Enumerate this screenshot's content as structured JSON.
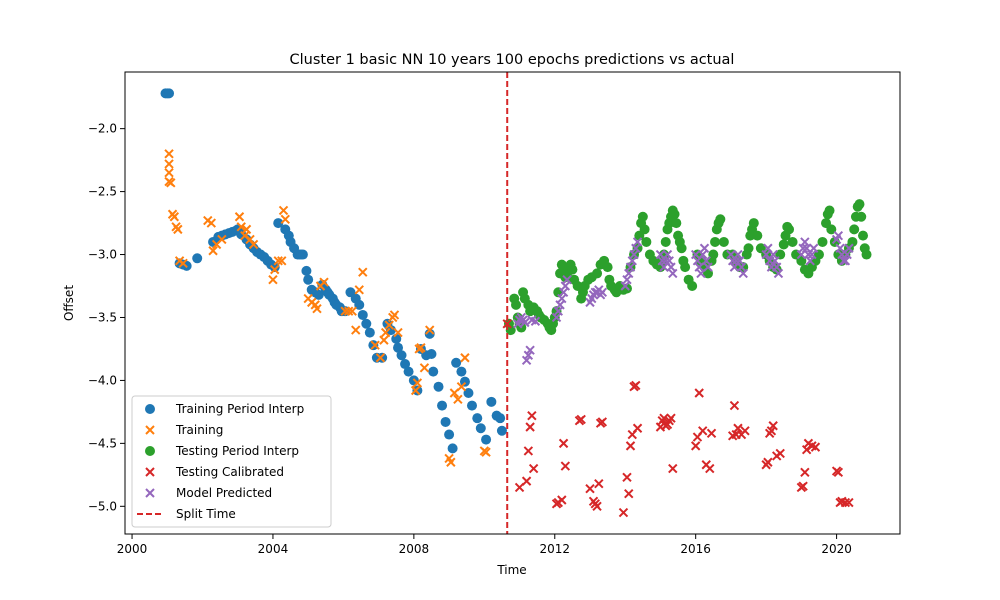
{
  "chart_data": {
    "type": "scatter",
    "title": "Cluster 1 basic NN 10 years 100 epochs predictions vs actual",
    "xlabel": "Time",
    "ylabel": "Offset",
    "xlim": [
      1999.8,
      2021.8
    ],
    "ylim": [
      -5.22,
      -1.55
    ],
    "xticks": [
      2000,
      2004,
      2008,
      2012,
      2016,
      2020
    ],
    "yticks": [
      -5.0,
      -4.5,
      -4.0,
      -3.5,
      -3.0,
      -2.5,
      -2.0
    ],
    "grid": false,
    "legend_position": "lower-left",
    "split_time": 2010.65,
    "series": [
      {
        "name": "Training Period Interp",
        "marker": "circle",
        "color": "#1f77b4",
        "x": [
          2000.95,
          2001.0,
          2001.05,
          2001.35,
          2001.45,
          2001.55,
          2001.85,
          2002.3,
          2002.45,
          2002.55,
          2002.65,
          2002.75,
          2002.85,
          2002.95,
          2003.0,
          2003.1,
          2003.25,
          2003.35,
          2003.45,
          2003.55,
          2003.65,
          2003.75,
          2003.85,
          2003.95,
          2004.05,
          2004.15,
          2004.35,
          2004.45,
          2004.5,
          2004.6,
          2004.7,
          2004.75,
          2004.8,
          2004.85,
          2004.95,
          2005.0,
          2005.1,
          2005.2,
          2005.3,
          2005.4,
          2005.5,
          2005.55,
          2005.6,
          2005.7,
          2005.75,
          2005.8,
          2005.9,
          2005.95,
          2006.05,
          2006.2,
          2006.35,
          2006.45,
          2006.55,
          2006.65,
          2006.75,
          2006.85,
          2006.95,
          2007.1,
          2007.25,
          2007.35,
          2007.5,
          2007.55,
          2007.65,
          2007.75,
          2007.85,
          2008.0,
          2008.1,
          2008.2,
          2008.35,
          2008.45,
          2008.5,
          2008.55,
          2008.7,
          2008.8,
          2008.9,
          2009.0,
          2009.1,
          2009.2,
          2009.35,
          2009.45,
          2009.55,
          2009.65,
          2009.8,
          2009.9,
          2010.05,
          2010.2,
          2010.35,
          2010.45,
          2010.5
        ],
        "y": [
          -1.72,
          -1.72,
          -1.72,
          -3.07,
          -3.08,
          -3.09,
          -3.03,
          -2.9,
          -2.86,
          -2.85,
          -2.84,
          -2.83,
          -2.82,
          -2.81,
          -2.8,
          -2.84,
          -2.88,
          -2.92,
          -2.95,
          -2.98,
          -3.0,
          -3.02,
          -3.05,
          -3.08,
          -3.1,
          -2.75,
          -2.8,
          -2.85,
          -2.9,
          -2.95,
          -3.0,
          -3.0,
          -3.0,
          -3.0,
          -3.13,
          -3.2,
          -3.28,
          -3.3,
          -3.32,
          -3.24,
          -3.28,
          -3.3,
          -3.32,
          -3.35,
          -3.38,
          -3.4,
          -3.42,
          -3.45,
          -3.45,
          -3.3,
          -3.35,
          -3.4,
          -3.48,
          -3.55,
          -3.62,
          -3.72,
          -3.82,
          -3.82,
          -3.55,
          -3.6,
          -3.67,
          -3.74,
          -3.8,
          -3.87,
          -3.93,
          -4.0,
          -4.08,
          -3.75,
          -3.8,
          -3.63,
          -3.79,
          -3.93,
          -4.05,
          -4.2,
          -4.33,
          -4.43,
          -4.54,
          -3.86,
          -3.93,
          -4.01,
          -4.1,
          -4.2,
          -4.3,
          -4.38,
          -4.47,
          -4.17,
          -4.28,
          -4.3,
          -4.4
        ]
      },
      {
        "name": "Training",
        "marker": "x",
        "color": "#ff7f0e",
        "x": [
          2001.05,
          2001.05,
          2001.05,
          2001.05,
          2001.1,
          2001.15,
          2001.2,
          2001.25,
          2001.3,
          2001.35,
          2001.45,
          2002.15,
          2002.25,
          2002.3,
          2002.4,
          2002.55,
          2003.05,
          2003.1,
          2003.2,
          2003.25,
          2003.35,
          2003.45,
          2004.0,
          2004.05,
          2004.15,
          2004.25,
          2004.3,
          2004.35,
          2005.0,
          2005.1,
          2005.2,
          2005.25,
          2005.35,
          2005.45,
          2006.05,
          2006.15,
          2006.25,
          2006.35,
          2006.45,
          2006.55,
          2006.9,
          2007.05,
          2007.15,
          2007.2,
          2007.3,
          2007.4,
          2007.45,
          2007.55,
          2008.05,
          2008.1,
          2008.15,
          2008.2,
          2008.3,
          2008.45,
          2009.0,
          2009.05,
          2009.15,
          2009.25,
          2009.35,
          2009.45,
          2010.0,
          2010.05
        ],
        "y": [
          -2.2,
          -2.28,
          -2.35,
          -2.42,
          -2.43,
          -2.68,
          -2.7,
          -2.78,
          -2.8,
          -3.05,
          -3.07,
          -2.73,
          -2.75,
          -2.97,
          -2.92,
          -2.88,
          -2.7,
          -2.78,
          -2.85,
          -2.8,
          -2.88,
          -2.92,
          -3.2,
          -3.12,
          -3.05,
          -3.05,
          -2.65,
          -2.72,
          -3.35,
          -3.38,
          -3.4,
          -3.43,
          -3.25,
          -3.22,
          -3.45,
          -3.45,
          -3.45,
          -3.6,
          -3.28,
          -3.14,
          -3.72,
          -3.82,
          -3.68,
          -3.62,
          -3.56,
          -3.5,
          -3.48,
          -3.62,
          -4.08,
          -4.02,
          -3.75,
          -3.74,
          -3.9,
          -3.6,
          -4.62,
          -4.65,
          -4.1,
          -4.15,
          -4.05,
          -3.82,
          -4.56,
          -4.57
        ]
      },
      {
        "name": "Testing Period Interp",
        "marker": "circle",
        "color": "#2ca02c",
        "x": [
          2010.7,
          2010.75,
          2010.85,
          2010.9,
          2010.95,
          2011.0,
          2011.05,
          2011.1,
          2011.15,
          2011.25,
          2011.3,
          2011.4,
          2011.5,
          2011.55,
          2011.6,
          2011.7,
          2011.8,
          2011.85,
          2011.9,
          2011.95,
          2012.0,
          2012.05,
          2012.1,
          2012.15,
          2012.2,
          2012.25,
          2012.3,
          2012.35,
          2012.4,
          2012.45,
          2012.5,
          2012.55,
          2012.65,
          2012.75,
          2012.8,
          2012.85,
          2012.95,
          2013.05,
          2013.2,
          2013.3,
          2013.4,
          2013.5,
          2013.55,
          2013.6,
          2013.7,
          2013.75,
          2013.85,
          2013.95,
          2014.05,
          2014.15,
          2014.25,
          2014.35,
          2014.4,
          2014.45,
          2014.5,
          2014.55,
          2014.6,
          2014.7,
          2014.8,
          2014.9,
          2015.0,
          2015.05,
          2015.1,
          2015.15,
          2015.2,
          2015.25,
          2015.3,
          2015.35,
          2015.4,
          2015.45,
          2015.5,
          2015.55,
          2015.6,
          2015.65,
          2015.7,
          2015.8,
          2015.9,
          2016.05,
          2016.15,
          2016.25,
          2016.35,
          2016.45,
          2016.5,
          2016.55,
          2016.6,
          2016.65,
          2016.7,
          2016.8,
          2016.9,
          2017.05,
          2017.15,
          2017.25,
          2017.35,
          2017.45,
          2017.5,
          2017.55,
          2017.6,
          2017.65,
          2017.75,
          2017.85,
          2018.0,
          2018.1,
          2018.2,
          2018.3,
          2018.4,
          2018.5,
          2018.55,
          2018.6,
          2018.65,
          2018.75,
          2018.85,
          2019.0,
          2019.1,
          2019.2,
          2019.3,
          2019.4,
          2019.5,
          2019.6,
          2019.7,
          2019.75,
          2019.8,
          2019.85,
          2019.95,
          2020.05,
          2020.15,
          2020.25,
          2020.35,
          2020.45,
          2020.5,
          2020.55,
          2020.6,
          2020.65,
          2020.7,
          2020.75,
          2020.8,
          2020.85
        ],
        "y": [
          -3.55,
          -3.6,
          -3.35,
          -3.4,
          -3.5,
          -3.55,
          -3.58,
          -3.3,
          -3.35,
          -3.4,
          -3.45,
          -3.42,
          -3.45,
          -3.48,
          -3.5,
          -3.52,
          -3.55,
          -3.58,
          -3.6,
          -3.55,
          -3.5,
          -3.45,
          -3.3,
          -3.15,
          -3.08,
          -3.12,
          -3.18,
          -3.15,
          -3.12,
          -3.08,
          -3.12,
          -3.2,
          -3.25,
          -3.35,
          -3.3,
          -3.25,
          -3.2,
          -3.18,
          -3.15,
          -3.08,
          -3.05,
          -3.1,
          -3.2,
          -3.25,
          -3.28,
          -3.3,
          -3.25,
          -3.28,
          -3.27,
          -3.1,
          -3.0,
          -2.95,
          -2.85,
          -2.75,
          -2.7,
          -2.8,
          -2.9,
          -3.0,
          -3.05,
          -3.08,
          -3.1,
          -3.05,
          -3.0,
          -2.9,
          -2.8,
          -2.75,
          -2.7,
          -2.65,
          -2.68,
          -2.75,
          -2.85,
          -2.9,
          -2.95,
          -3.05,
          -3.1,
          -3.2,
          -3.25,
          -3.0,
          -3.05,
          -3.1,
          -3.15,
          -3.05,
          -3.0,
          -2.9,
          -2.8,
          -2.75,
          -2.72,
          -2.9,
          -3.0,
          -3.0,
          -3.05,
          -3.1,
          -3.1,
          -3.0,
          -2.95,
          -2.85,
          -2.8,
          -2.75,
          -2.85,
          -2.95,
          -3.0,
          -3.05,
          -3.1,
          -3.12,
          -3.0,
          -2.92,
          -2.85,
          -2.78,
          -2.8,
          -2.9,
          -3.0,
          -3.05,
          -3.12,
          -3.15,
          -3.1,
          -3.05,
          -3.0,
          -2.9,
          -2.75,
          -2.68,
          -2.65,
          -2.8,
          -2.9,
          -3.0,
          -3.05,
          -3.0,
          -2.95,
          -2.9,
          -2.8,
          -2.7,
          -2.62,
          -2.6,
          -2.7,
          -2.85,
          -2.95,
          -3.0
        ]
      },
      {
        "name": "Testing Calibrated",
        "marker": "x",
        "color": "#d62728",
        "x": [
          2010.65,
          2011.0,
          2011.2,
          2011.25,
          2011.3,
          2011.35,
          2011.4,
          2012.05,
          2012.1,
          2012.2,
          2012.25,
          2012.3,
          2012.7,
          2012.75,
          2013.0,
          2013.1,
          2013.15,
          2013.2,
          2013.25,
          2013.3,
          2013.35,
          2013.95,
          2014.05,
          2014.1,
          2014.15,
          2014.2,
          2014.25,
          2014.3,
          2014.35,
          2015.0,
          2015.05,
          2015.1,
          2015.15,
          2015.2,
          2015.25,
          2015.3,
          2015.35,
          2016.0,
          2016.05,
          2016.1,
          2016.2,
          2016.3,
          2016.4,
          2016.45,
          2017.05,
          2017.1,
          2017.15,
          2017.2,
          2017.3,
          2017.4,
          2018.0,
          2018.05,
          2018.1,
          2018.15,
          2018.2,
          2018.3,
          2018.4,
          2019.0,
          2019.05,
          2019.1,
          2019.15,
          2019.2,
          2019.3,
          2019.4,
          2020.0,
          2020.05,
          2020.1,
          2020.15,
          2020.25,
          2020.35
        ],
        "y": [
          -3.55,
          -4.85,
          -4.8,
          -4.56,
          -4.37,
          -4.28,
          -4.7,
          -4.98,
          -4.97,
          -4.95,
          -4.5,
          -4.68,
          -4.32,
          -4.31,
          -4.86,
          -4.96,
          -4.98,
          -5.0,
          -4.82,
          -4.34,
          -4.33,
          -5.05,
          -4.77,
          -4.9,
          -4.52,
          -4.43,
          -4.05,
          -4.04,
          -4.38,
          -4.37,
          -4.32,
          -4.3,
          -4.36,
          -4.35,
          -4.32,
          -4.3,
          -4.7,
          -4.52,
          -4.45,
          -4.1,
          -4.4,
          -4.67,
          -4.7,
          -4.42,
          -4.44,
          -4.2,
          -4.43,
          -4.38,
          -4.43,
          -4.4,
          -4.67,
          -4.65,
          -4.42,
          -4.4,
          -4.36,
          -4.6,
          -4.58,
          -4.85,
          -4.84,
          -4.73,
          -4.55,
          -4.5,
          -4.52,
          -4.53,
          -4.72,
          -4.73,
          -4.97,
          -4.96,
          -4.97,
          -4.97
        ]
      },
      {
        "name": "Model Predicted",
        "marker": "x",
        "color": "#9467bd",
        "x": [
          2010.95,
          2011.0,
          2011.05,
          2011.1,
          2011.15,
          2011.2,
          2011.25,
          2011.3,
          2011.35,
          2011.45,
          2012.05,
          2012.1,
          2012.15,
          2012.2,
          2012.25,
          2012.3,
          2012.35,
          2013.0,
          2013.05,
          2013.1,
          2013.15,
          2013.2,
          2013.25,
          2013.3,
          2013.35,
          2014.0,
          2014.05,
          2014.1,
          2014.15,
          2014.2,
          2014.25,
          2014.3,
          2014.35,
          2015.0,
          2015.05,
          2015.1,
          2015.15,
          2015.2,
          2015.25,
          2015.3,
          2015.35,
          2016.0,
          2016.05,
          2016.1,
          2016.15,
          2016.2,
          2016.25,
          2016.3,
          2016.35,
          2017.0,
          2017.05,
          2017.1,
          2017.15,
          2017.2,
          2017.25,
          2017.3,
          2017.35,
          2018.0,
          2018.05,
          2018.1,
          2018.15,
          2018.2,
          2018.25,
          2018.3,
          2018.35,
          2019.0,
          2019.05,
          2019.1,
          2019.15,
          2019.2,
          2019.25,
          2019.3,
          2019.35,
          2020.0,
          2020.05,
          2020.1,
          2020.15,
          2020.2,
          2020.25,
          2020.3,
          2020.35
        ],
        "y": [
          -3.55,
          -3.52,
          -3.5,
          -3.52,
          -3.54,
          -3.84,
          -3.8,
          -3.76,
          -3.52,
          -3.53,
          -3.5,
          -3.45,
          -3.4,
          -3.35,
          -3.3,
          -3.25,
          -3.2,
          -3.38,
          -3.35,
          -3.32,
          -3.3,
          -3.3,
          -3.28,
          -3.32,
          -3.3,
          -3.25,
          -3.2,
          -3.15,
          -3.1,
          -3.05,
          -3.0,
          -2.95,
          -2.9,
          -3.0,
          -3.05,
          -3.1,
          -3.05,
          -3.0,
          -3.05,
          -3.1,
          -3.15,
          -3.0,
          -3.05,
          -3.1,
          -3.15,
          -3.0,
          -2.95,
          -3.05,
          -3.1,
          -3.0,
          -3.05,
          -3.1,
          -3.05,
          -3.0,
          -3.05,
          -3.1,
          -3.15,
          -3.0,
          -2.95,
          -3.05,
          -3.1,
          -3.0,
          -3.05,
          -3.1,
          -3.15,
          -3.0,
          -2.95,
          -2.9,
          -2.95,
          -3.0,
          -3.05,
          -3.0,
          -2.95,
          -2.88,
          -2.85,
          -2.95,
          -3.0,
          -3.05,
          -3.05,
          -3.0,
          -2.95
        ]
      }
    ],
    "split_line": {
      "name": "Split Time",
      "color": "#d62728",
      "style": "dashed"
    }
  }
}
